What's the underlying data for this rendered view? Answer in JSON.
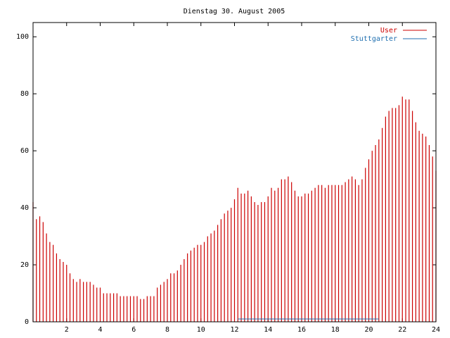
{
  "chart_data": {
    "type": "impulses",
    "title": "Dienstag 30. August 2005",
    "x": [
      0,
      0.2,
      0.4,
      0.6,
      0.8,
      1,
      1.2,
      1.4,
      1.6,
      1.8,
      2,
      2.2,
      2.4,
      2.6,
      2.8,
      3,
      3.2,
      3.4,
      3.6,
      3.8,
      4,
      4.2,
      4.4,
      4.6,
      4.8,
      5,
      5.2,
      5.4,
      5.6,
      5.8,
      6,
      6.2,
      6.4,
      6.6,
      6.8,
      7,
      7.2,
      7.4,
      7.6,
      7.8,
      8,
      8.2,
      8.4,
      8.6,
      8.8,
      9,
      9.2,
      9.4,
      9.6,
      9.8,
      10,
      10.2,
      10.4,
      10.6,
      10.8,
      11,
      11.2,
      11.4,
      11.6,
      11.8,
      12,
      12.2,
      12.4,
      12.6,
      12.8,
      13,
      13.2,
      13.4,
      13.6,
      13.8,
      14,
      14.2,
      14.4,
      14.6,
      14.8,
      15,
      15.2,
      15.4,
      15.6,
      15.8,
      16,
      16.2,
      16.4,
      16.6,
      16.8,
      17,
      17.2,
      17.4,
      17.6,
      17.8,
      18,
      18.2,
      18.4,
      18.6,
      18.8,
      19,
      19.2,
      19.4,
      19.6,
      19.8,
      20,
      20.2,
      20.4,
      20.6,
      20.8,
      21,
      21.2,
      21.4,
      21.6,
      21.8,
      22,
      22.2,
      22.4,
      22.6,
      22.8,
      23,
      23.2,
      23.4,
      23.6,
      23.8,
      24
    ],
    "series": [
      {
        "name": "User",
        "color": "#cc0000",
        "style": "impulses",
        "values": [
          42,
          36,
          37,
          35,
          31,
          28,
          27,
          24,
          22,
          21,
          20,
          17,
          15,
          14,
          15,
          14,
          14,
          14,
          13,
          12,
          12,
          10,
          10,
          10,
          10,
          10,
          9,
          9,
          9,
          9,
          9,
          9,
          8,
          8,
          9,
          9,
          9,
          12,
          13,
          14,
          15,
          17,
          17,
          18,
          20,
          22,
          24,
          25,
          26,
          27,
          27,
          28,
          30,
          31,
          32,
          34,
          36,
          38,
          39,
          40,
          43,
          47,
          45,
          45,
          46,
          44,
          42,
          41,
          42,
          42,
          44,
          47,
          46,
          47,
          50,
          50,
          51,
          49,
          46,
          44,
          44,
          45,
          45,
          46,
          47,
          48,
          48,
          47,
          48,
          48,
          48,
          48,
          48,
          49,
          50,
          51,
          50,
          48,
          50,
          54,
          57,
          60,
          62,
          64,
          68,
          72,
          74,
          75,
          75,
          76,
          79,
          78,
          78,
          74,
          70,
          67,
          66,
          65,
          62,
          58,
          53
        ]
      },
      {
        "name": "Stuttgarter",
        "color": "#1f6fb0",
        "style": "lines",
        "values": [
          null,
          null,
          null,
          null,
          null,
          null,
          null,
          null,
          null,
          null,
          null,
          null,
          null,
          null,
          null,
          null,
          null,
          null,
          null,
          null,
          null,
          null,
          null,
          null,
          null,
          null,
          null,
          null,
          null,
          null,
          null,
          null,
          null,
          null,
          null,
          null,
          null,
          null,
          null,
          null,
          null,
          null,
          null,
          null,
          null,
          null,
          null,
          null,
          null,
          null,
          null,
          null,
          null,
          null,
          null,
          null,
          null,
          null,
          null,
          null,
          null,
          1,
          1,
          1,
          1,
          1,
          1,
          1,
          1,
          1,
          1,
          1,
          1,
          1,
          1,
          1,
          1,
          1,
          1,
          1,
          1,
          1,
          1,
          1,
          1,
          1,
          1,
          1,
          1,
          1,
          1,
          1,
          1,
          1,
          1,
          1,
          1,
          1,
          1,
          1,
          1,
          1,
          1,
          1,
          null,
          null,
          null,
          null,
          null,
          null,
          null,
          null,
          null,
          null,
          null,
          null,
          null,
          null,
          null,
          null,
          null
        ]
      }
    ],
    "xlim": [
      0,
      24
    ],
    "xticks": [
      2,
      4,
      6,
      8,
      10,
      12,
      14,
      16,
      18,
      20,
      22,
      24
    ],
    "ylim": [
      0,
      105
    ],
    "yticks": [
      0,
      20,
      40,
      60,
      80,
      100
    ],
    "legend": "top-right"
  }
}
